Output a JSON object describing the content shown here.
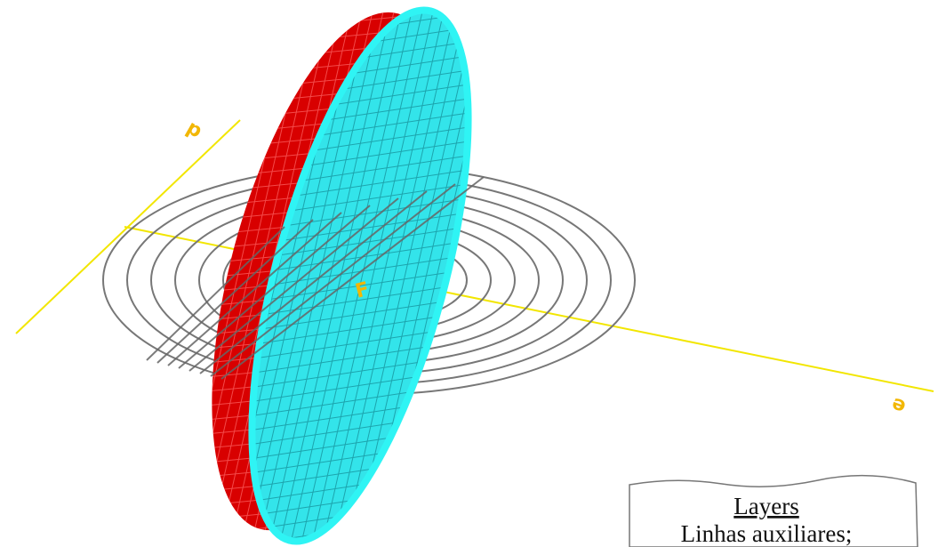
{
  "labels": {
    "d": "d",
    "e": "e",
    "focus": "F"
  },
  "note": {
    "title": "Layers",
    "text": "Linhas auxiliares;"
  }
}
